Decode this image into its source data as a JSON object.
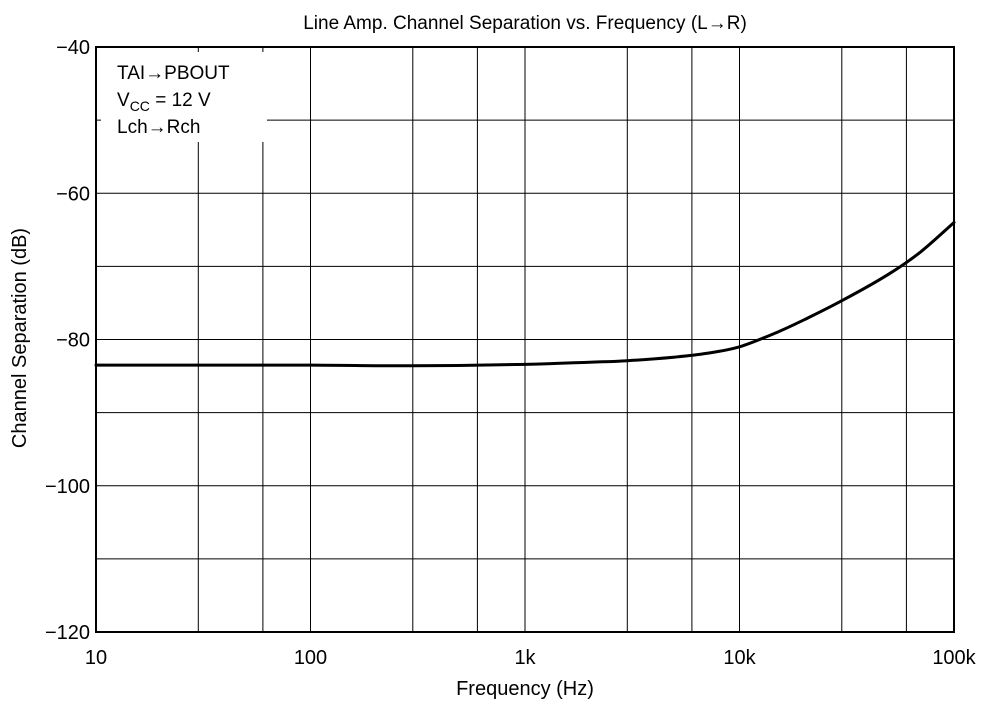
{
  "chart_data": {
    "type": "line",
    "title": "Line Amp. Channel Separation vs. Frequency (L→R)",
    "xlabel": "Frequency  (Hz)",
    "ylabel": "Channel Separation  (dB)",
    "x_scale": "log",
    "xlim": [
      10,
      100000
    ],
    "ylim": [
      -120,
      -40
    ],
    "grid": true,
    "x_ticks": [
      10,
      100,
      1000,
      10000,
      100000
    ],
    "x_tick_labels": [
      "10",
      "100",
      "1k",
      "10k",
      "100k"
    ],
    "y_ticks": [
      -120,
      -100,
      -80,
      -60,
      -40
    ],
    "y_tick_labels": [
      "−120",
      "−100",
      "−80",
      "−60",
      "−40"
    ],
    "annotation": {
      "line1": "TAI→PBOUT",
      "line2_main": "V",
      "line2_sub": "CC",
      "line2_rest": " = 12 V",
      "line3": "Lch→Rch"
    },
    "series": [
      {
        "x": [
          10,
          30,
          100,
          300,
          1000,
          2000,
          3000,
          5000,
          7000,
          10000,
          15000,
          20000,
          30000,
          50000,
          70000,
          100000
        ],
        "y": [
          -83.5,
          -83.5,
          -83.5,
          -83.6,
          -83.4,
          -83.1,
          -82.9,
          -82.4,
          -81.9,
          -81.0,
          -79.0,
          -77.3,
          -74.7,
          -71.0,
          -68.0,
          -64.0
        ]
      }
    ],
    "colors": {
      "line": "#000000",
      "grid": "#000000",
      "background": "#ffffff"
    }
  }
}
